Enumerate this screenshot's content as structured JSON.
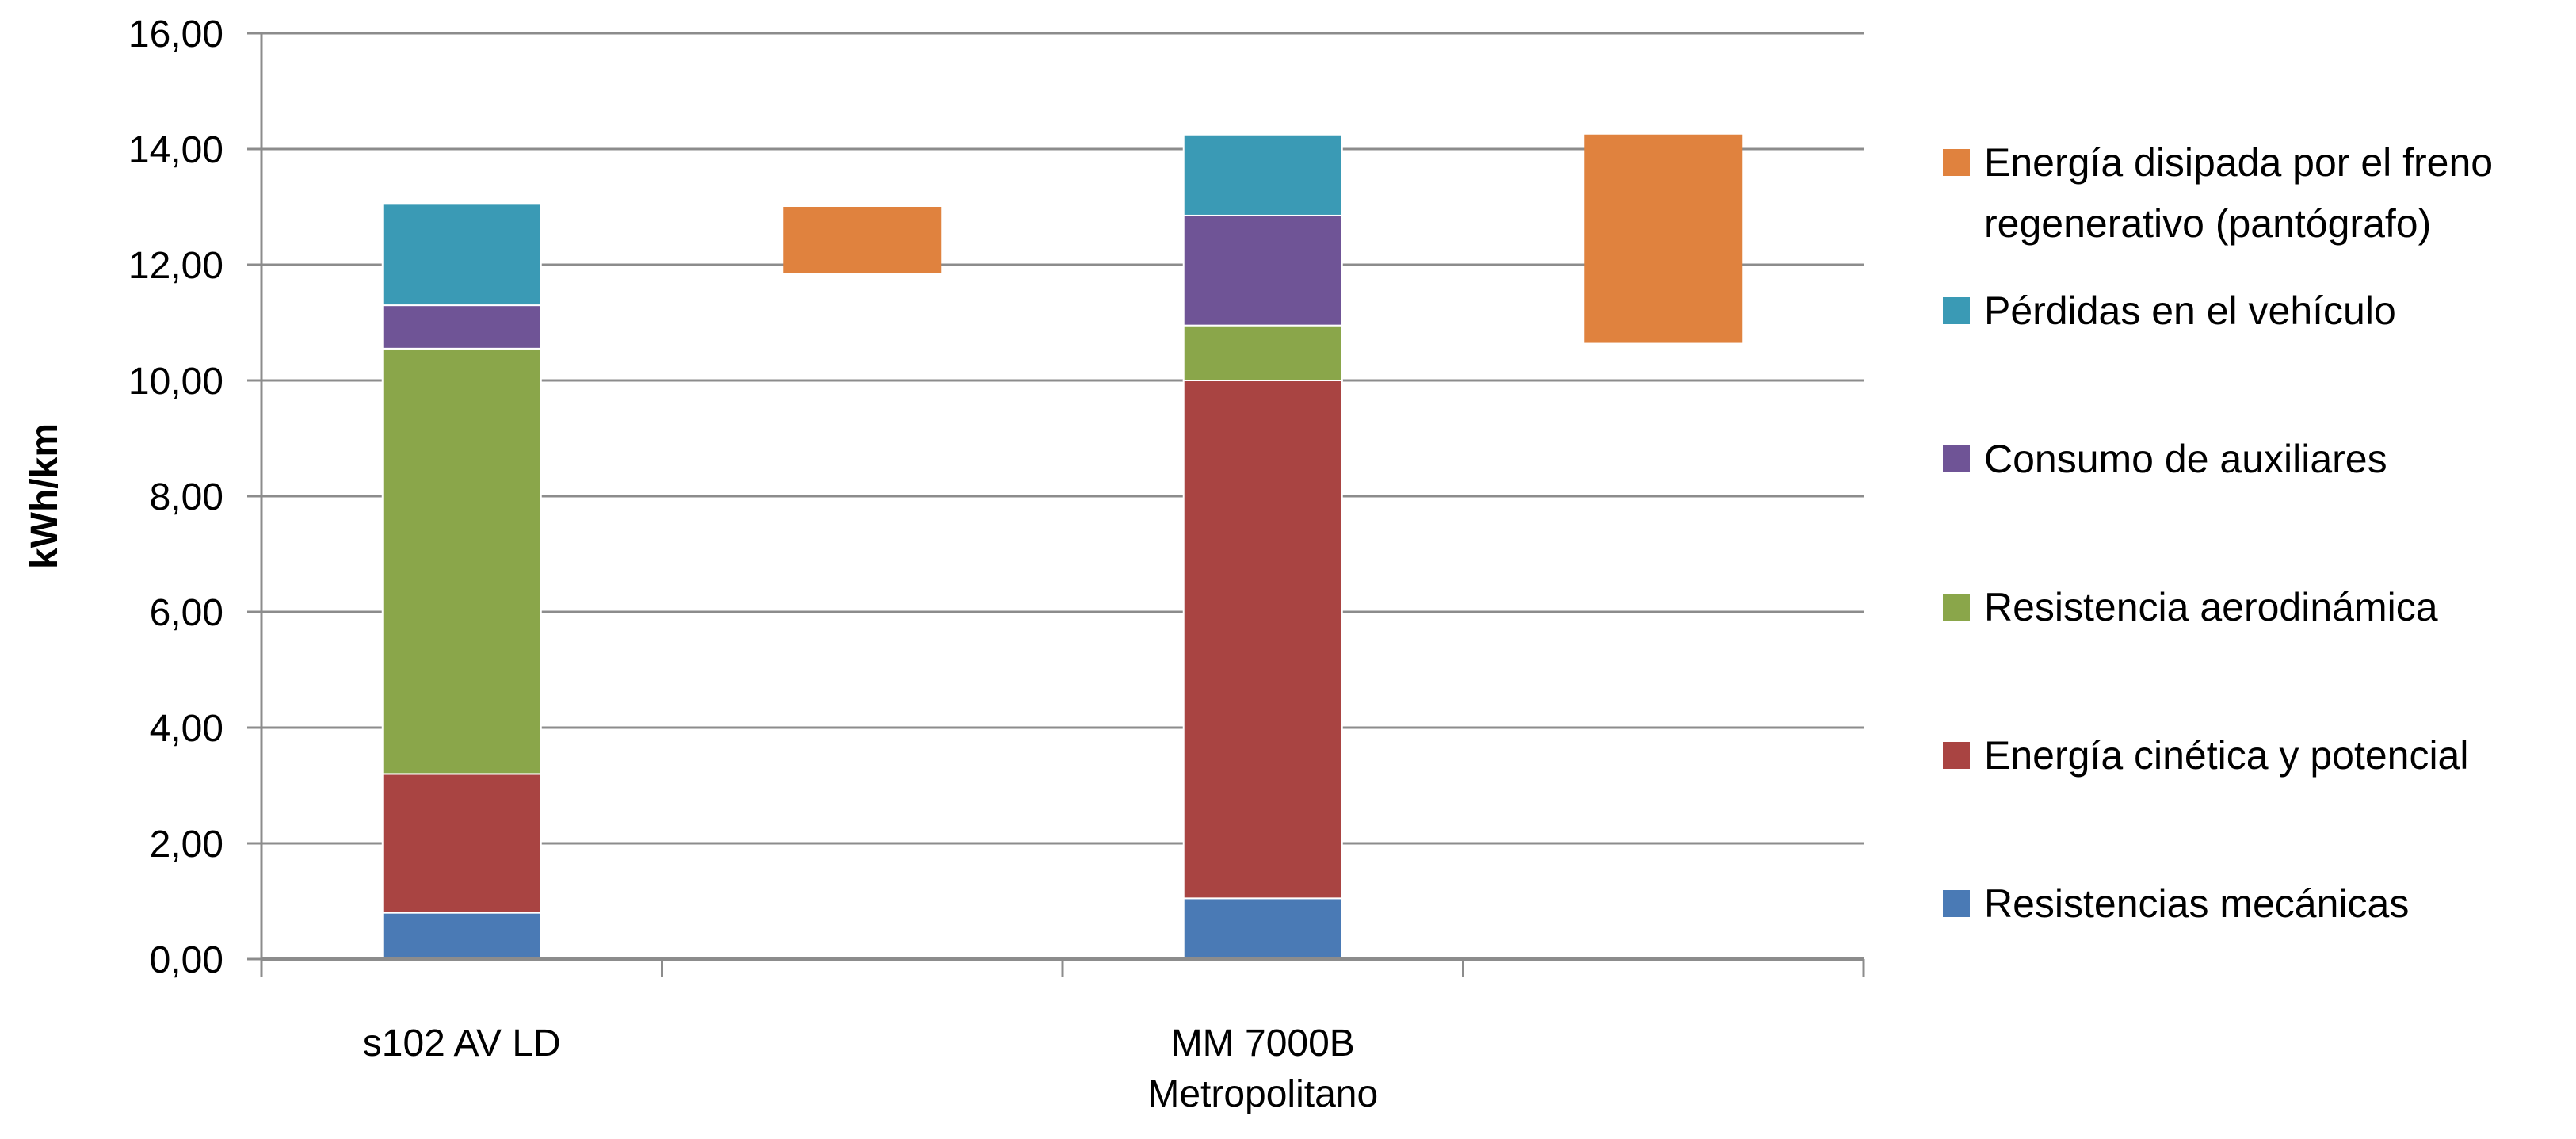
{
  "chart_data": {
    "type": "bar",
    "subtype": "stacked-floating",
    "title": "",
    "xlabel": "",
    "ylabel": "kWh/km",
    "ylim": [
      0,
      16
    ],
    "yticks": [
      "0,00",
      "2,00",
      "4,00",
      "6,00",
      "8,00",
      "10,00",
      "12,00",
      "14,00",
      "16,00"
    ],
    "grid": true,
    "legend_position": "right",
    "categories": [
      {
        "lines": [
          "s102 AV LD"
        ]
      },
      {
        "lines": [
          "MM 7000B",
          "Metropolitano"
        ]
      }
    ],
    "series": [
      {
        "name": "Resistencias mecánicas",
        "color": "#4a7ab5",
        "values": [
          0.8,
          1.05
        ]
      },
      {
        "name": "Energía cinética y potencial",
        "color": "#a94442",
        "values": [
          2.4,
          8.95
        ]
      },
      {
        "name": "Resistencia aerodinámica",
        "color": "#8aa64a",
        "values": [
          7.35,
          0.95
        ]
      },
      {
        "name": "Consumo de auxiliares",
        "color": "#6f5496",
        "values": [
          0.75,
          1.9
        ]
      },
      {
        "name": "Pérdidas en el vehículo",
        "color": "#3a9ab5",
        "values": [
          1.75,
          1.4
        ]
      }
    ],
    "floating_series": {
      "name": "Energía disipada por el freno regenerativo (pantógrafo)",
      "legend_lines": [
        "Energía disipada por el freno",
        "regenerativo (pantógrafo)"
      ],
      "color": "#e0823e",
      "ranges": [
        [
          11.85,
          13.0
        ],
        [
          10.65,
          14.25
        ]
      ]
    },
    "legend_order": [
      "Energía disipada por el freno regenerativo (pantógrafo)",
      "Pérdidas en el vehículo",
      "Consumo de auxiliares",
      "Resistencia aerodinámica",
      "Energía cinética y potencial",
      "Resistencias mecánicas"
    ]
  }
}
